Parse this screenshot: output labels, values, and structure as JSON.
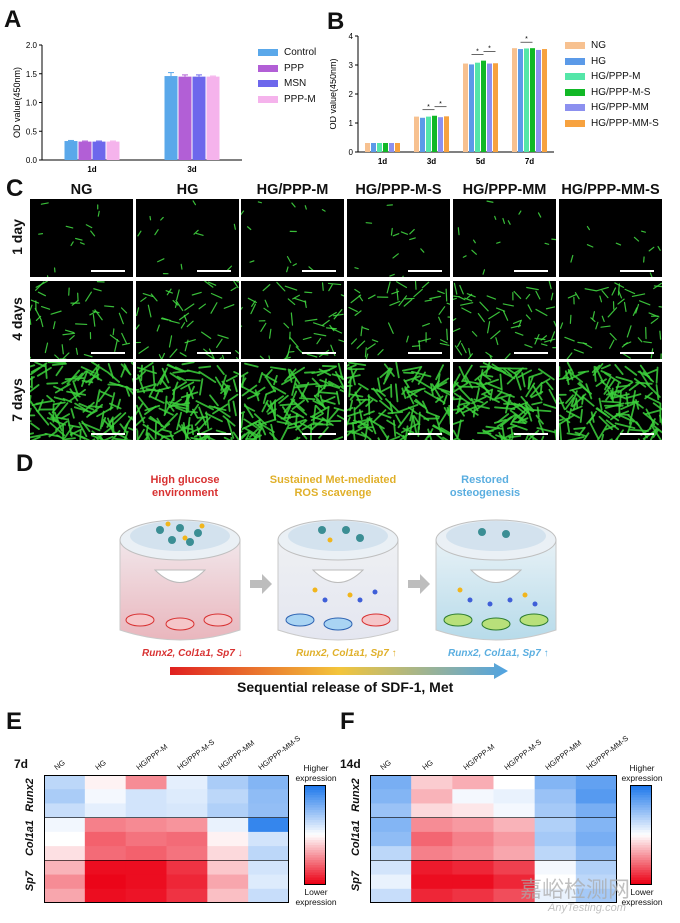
{
  "panels": {
    "A": "A",
    "B": "B",
    "C": "C",
    "D": "D",
    "E": "E",
    "F": "F"
  },
  "chart_data": [
    {
      "id": "A",
      "type": "bar",
      "ylabel": "OD value(450nm)",
      "ylim": [
        0,
        2.0
      ],
      "yticks": [
        "0.0",
        "0.5",
        "1.0",
        "1.5",
        "2.0"
      ],
      "categories": [
        "1d",
        "3d"
      ],
      "series": [
        {
          "name": "Control",
          "color": "#5aa8ea",
          "values": [
            0.33,
            1.46
          ],
          "err": [
            0.01,
            0.06
          ]
        },
        {
          "name": "PPP",
          "color": "#b25fd6",
          "values": [
            0.32,
            1.45
          ],
          "err": [
            0.01,
            0.03
          ]
        },
        {
          "name": "MSN",
          "color": "#6d67ec",
          "values": [
            0.32,
            1.45
          ],
          "err": [
            0.01,
            0.03
          ]
        },
        {
          "name": "PPP-M",
          "color": "#f5b3ec",
          "values": [
            0.32,
            1.45
          ],
          "err": [
            0.01,
            0.01
          ]
        }
      ],
      "legend": "right"
    },
    {
      "id": "B",
      "type": "bar",
      "ylabel": "OD value(450nm)",
      "ylim": [
        0,
        4
      ],
      "yticks": [
        "0",
        "1",
        "2",
        "3",
        "4"
      ],
      "categories": [
        "1d",
        "3d",
        "5d",
        "7d"
      ],
      "series": [
        {
          "name": "NG",
          "color": "#f7c190",
          "values": [
            0.31,
            1.22,
            3.05,
            3.58
          ]
        },
        {
          "name": "HG",
          "color": "#5b9ae8",
          "values": [
            0.31,
            1.18,
            3.02,
            3.55
          ]
        },
        {
          "name": "HG/PPP-M",
          "color": "#54e6a8",
          "values": [
            0.31,
            1.22,
            3.08,
            3.57
          ]
        },
        {
          "name": "HG/PPP-M-S",
          "color": "#11b826",
          "values": [
            0.31,
            1.25,
            3.15,
            3.58
          ]
        },
        {
          "name": "HG/PPP-MM",
          "color": "#8c90ef",
          "values": [
            0.31,
            1.2,
            3.05,
            3.52
          ]
        },
        {
          "name": "HG/PPP-MM-S",
          "color": "#f7a23f",
          "values": [
            0.31,
            1.23,
            3.06,
            3.55
          ]
        }
      ],
      "sig": "*",
      "legend": "right"
    },
    {
      "id": "E",
      "type": "heatmap",
      "title": "7d",
      "columns": [
        "NG",
        "HG",
        "HG/PPP-M",
        "HG/PPP-M-S",
        "HG/PPP-MM",
        "HG/PPP-MM-S"
      ],
      "row_groups": [
        "Runx2",
        "Col1a1",
        "Sp7"
      ],
      "values": [
        [
          0.3,
          -0.05,
          -0.45,
          0.12,
          0.38,
          0.55
        ],
        [
          0.38,
          0.05,
          0.2,
          0.15,
          0.3,
          0.5
        ],
        [
          0.25,
          0.12,
          0.2,
          0.18,
          0.35,
          0.48
        ],
        [
          0.06,
          -0.5,
          -0.46,
          -0.42,
          0.1,
          0.9
        ],
        [
          0.0,
          -0.62,
          -0.55,
          -0.58,
          -0.05,
          0.2
        ],
        [
          -0.12,
          -0.58,
          -0.62,
          -0.55,
          -0.15,
          0.3
        ],
        [
          -0.3,
          -0.95,
          -0.95,
          -0.8,
          -0.22,
          0.2
        ],
        [
          -0.45,
          -0.98,
          -0.95,
          -0.85,
          -0.35,
          0.15
        ],
        [
          -0.35,
          -0.95,
          -0.92,
          -0.8,
          -0.25,
          0.25
        ]
      ],
      "colorbar": {
        "high": "Higher expression",
        "low": "Lower expression"
      }
    },
    {
      "id": "F",
      "type": "heatmap",
      "title": "14d",
      "columns": [
        "NG",
        "HG",
        "HG/PPP-M",
        "HG/PPP-M-S",
        "HG/PPP-MM",
        "HG/PPP-MM-S"
      ],
      "row_groups": [
        "Runx2",
        "Col1a1",
        "Sp7"
      ],
      "values": [
        [
          0.6,
          -0.2,
          -0.32,
          0.0,
          0.55,
          0.7
        ],
        [
          0.55,
          -0.3,
          0.05,
          0.1,
          0.45,
          0.75
        ],
        [
          0.45,
          -0.15,
          -0.1,
          0.05,
          0.4,
          0.6
        ],
        [
          0.55,
          -0.45,
          -0.4,
          -0.3,
          0.35,
          0.55
        ],
        [
          0.5,
          -0.6,
          -0.5,
          -0.4,
          0.4,
          0.6
        ],
        [
          0.3,
          -0.5,
          -0.45,
          -0.35,
          0.3,
          0.5
        ],
        [
          0.2,
          -0.9,
          -0.85,
          -0.75,
          0.05,
          0.35
        ],
        [
          0.1,
          -0.95,
          -0.95,
          -0.85,
          0.0,
          0.3
        ],
        [
          0.25,
          -0.85,
          -0.8,
          -0.7,
          0.1,
          0.4
        ]
      ],
      "colorbar": {
        "high": "Higher expression",
        "low": "Lower expression"
      }
    }
  ],
  "panelC": {
    "columns": [
      "NG",
      "HG",
      "HG/PPP-M",
      "HG/PPP-M-S",
      "HG/PPP-MM",
      "HG/PPP-MM-S"
    ],
    "rows": [
      "1 day",
      "4 days",
      "7 days"
    ],
    "cell_density": [
      [
        12,
        12,
        12,
        12,
        14,
        10
      ],
      [
        45,
        50,
        50,
        45,
        55,
        50
      ],
      [
        130,
        130,
        130,
        130,
        130,
        130
      ]
    ]
  },
  "panelD": {
    "stage1_title": "High glucose environment",
    "stage2_title": "Sustained Met-mediated ROS scavenge",
    "stage3_title": "Restored osteogenesis",
    "stage1_genes": "Runx2, Col1a1, Sp7",
    "stage2_genes": "Runx2, Col1a1, Sp7",
    "stage3_genes": "Runx2, Col1a1, Sp7",
    "arrow_label": "Sequential release of SDF-1, Met",
    "colors": {
      "stage1": "#d83232",
      "stage2": "#e6b82c",
      "stage3": "#5aaee0"
    }
  },
  "watermark": {
    "cn": "嘉峪检测网",
    "en": "AnyTesting.com"
  }
}
